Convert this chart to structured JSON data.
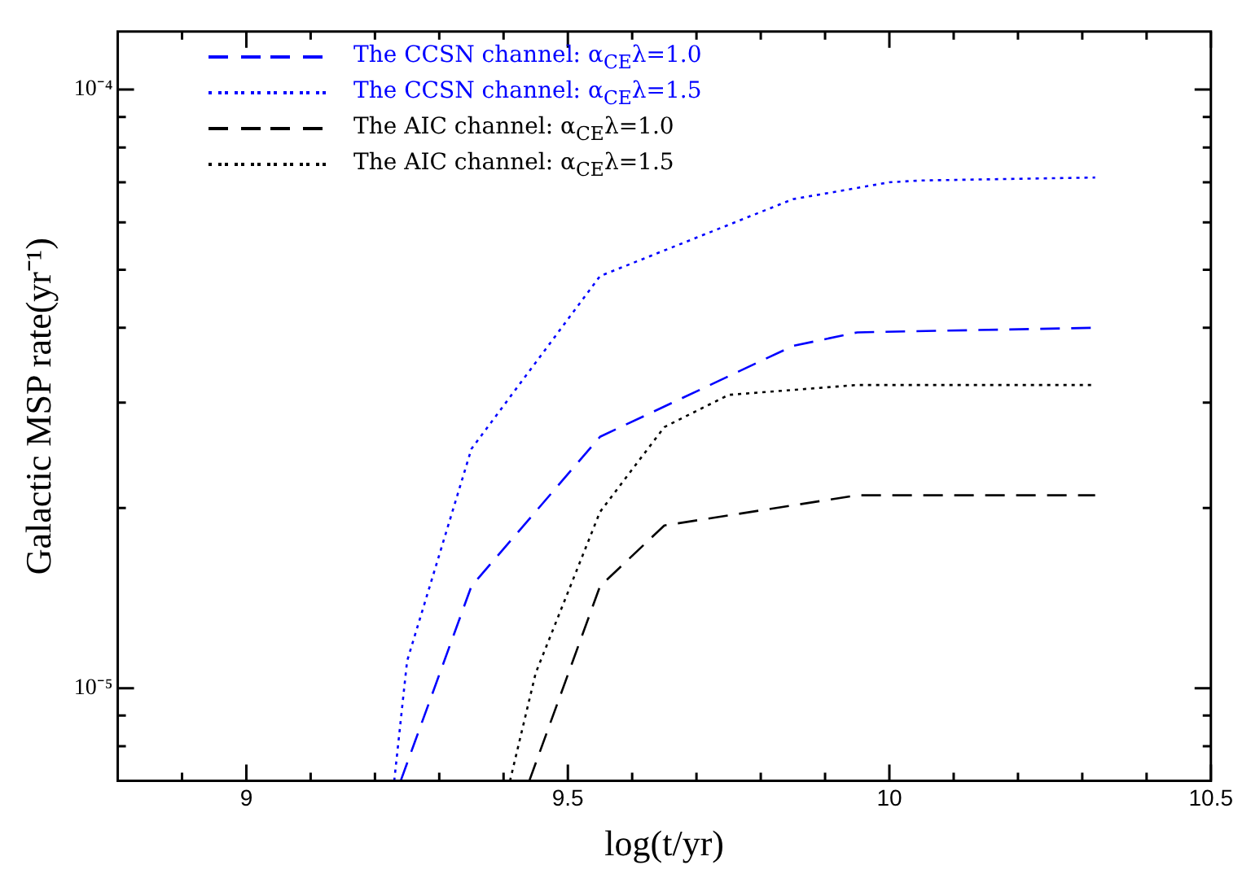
{
  "chart_data": {
    "type": "line",
    "xlabel": "log(t/yr)",
    "ylabel": "Galactic MSP rate(yr⁻¹)",
    "log": "y",
    "xlim": [
      8.8,
      10.5
    ],
    "ylim": [
      7e-06,
      0.000125
    ],
    "xticks": [
      {
        "value": 8.9,
        "label": null
      },
      9,
      {
        "value": 9.1,
        "label": null
      },
      {
        "value": 9.2,
        "label": null
      },
      {
        "value": 9.3,
        "label": null
      },
      {
        "value": 9.4,
        "label": null
      },
      9.5,
      {
        "value": 9.6,
        "label": null
      },
      {
        "value": 9.7,
        "label": null
      },
      {
        "value": 9.8,
        "label": null
      },
      {
        "value": 9.9,
        "label": null
      },
      10,
      {
        "value": 10.1,
        "label": null
      },
      {
        "value": 10.2,
        "label": null
      },
      {
        "value": 10.3,
        "label": null
      },
      {
        "value": 10.4,
        "label": null
      },
      10.5
    ],
    "yticks": [
      {
        "value": 8e-06,
        "label": null
      },
      {
        "value": 9e-06,
        "label": null
      },
      {
        "value": 1e-05,
        "label": "10⁻⁵"
      },
      {
        "value": 2e-05,
        "label": null
      },
      {
        "value": 3e-05,
        "label": null
      },
      {
        "value": 4e-05,
        "label": null
      },
      {
        "value": 5e-05,
        "label": null
      },
      {
        "value": 6e-05,
        "label": null
      },
      {
        "value": 7e-05,
        "label": null
      },
      {
        "value": 8e-05,
        "label": null
      },
      {
        "value": 9e-05,
        "label": null
      },
      {
        "value": 0.0001,
        "label": "10⁻⁴"
      }
    ],
    "grid": false,
    "legend": "top left",
    "marker": "none",
    "series": [
      {
        "name": "The CCSN channel: α$_{CE}$λ=1.0",
        "color": "#0000ff",
        "line_style": "dashed",
        "x": [
          9.24,
          9.35,
          9.55,
          9.85,
          9.95,
          10.32
        ],
        "values": [
          7e-06,
          1.48e-05,
          2.63e-05,
          3.73e-05,
          3.93e-05,
          4e-05
        ]
      },
      {
        "name": "The CCSN channel: α$_{CE}$λ=1.5",
        "color": "#0000ff",
        "line_style": "dotted",
        "x": [
          9.23,
          9.25,
          9.35,
          9.55,
          9.85,
          10.0,
          10.05,
          10.32
        ],
        "values": [
          7e-06,
          1.11e-05,
          2.51e-05,
          4.88e-05,
          6.56e-05,
          7e-05,
          7.05e-05,
          7.13e-05
        ]
      },
      {
        "name": "The AIC channel: α$_{CE}$λ=1.0",
        "color": "#000000",
        "line_style": "dashed",
        "x": [
          9.44,
          9.55,
          9.65,
          9.95,
          10.32
        ],
        "values": [
          7e-06,
          1.48e-05,
          1.87e-05,
          2.1e-05,
          2.1e-05
        ]
      },
      {
        "name": "The AIC channel: α$_{CE}$λ=1.5",
        "color": "#000000",
        "line_style": "dotted",
        "x": [
          9.41,
          9.45,
          9.55,
          9.65,
          9.75,
          9.95,
          10.32
        ],
        "values": [
          7e-06,
          1.06e-05,
          1.97e-05,
          2.73e-05,
          3.09e-05,
          3.21e-05,
          3.21e-05
        ]
      }
    ]
  }
}
